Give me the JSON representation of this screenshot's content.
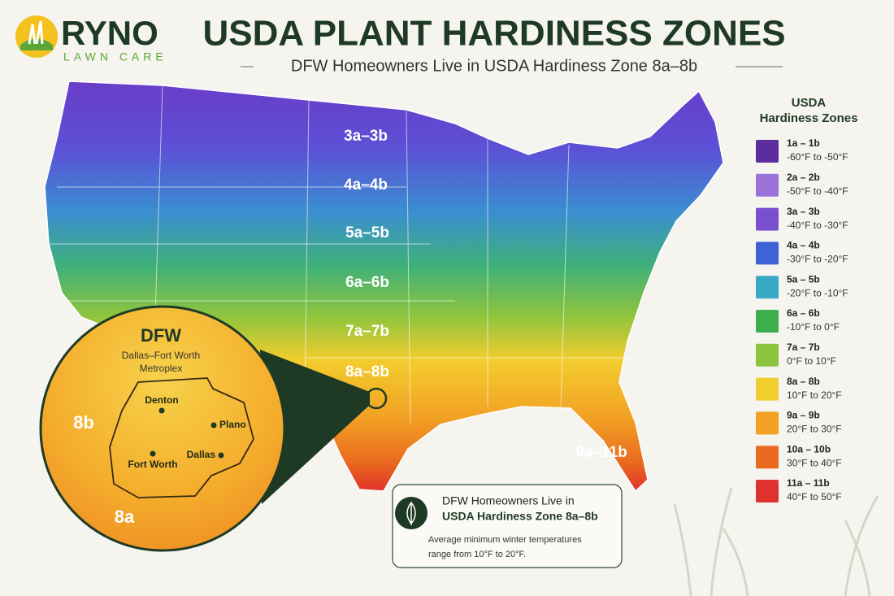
{
  "logo": {
    "name": "RYNO",
    "tagline": "LAWN CARE"
  },
  "header": {
    "title": "USDA PLANT HARDINESS ZONES",
    "subtitle": "DFW Homeowners Live in USDA Hardiness Zone 8a–8b"
  },
  "map": {
    "zone_labels": [
      "3a–3b",
      "4a–4b",
      "5a–5b",
      "6a–6b",
      "7a–7b",
      "8a–8b",
      "9a–11b"
    ]
  },
  "inset": {
    "title": "DFW",
    "subtitle_lines": [
      "Dallas–Fort Worth",
      "Metroplex"
    ],
    "cities": [
      "Denton",
      "Plano",
      "Fort Worth",
      "Dallas"
    ],
    "zones": [
      "8b",
      "8a"
    ]
  },
  "legend": {
    "title_lines": [
      "USDA",
      "Hardiness Zones"
    ],
    "items": [
      {
        "zone": "1a – 1b",
        "range": "-60°F to -50°F",
        "color": "#5b2d9e"
      },
      {
        "zone": "2a – 2b",
        "range": "-50°F to -40°F",
        "color": "#9b72d8"
      },
      {
        "zone": "3a – 3b",
        "range": "-40°F to -30°F",
        "color": "#7a4fd0"
      },
      {
        "zone": "4a – 4b",
        "range": "-30°F to -20°F",
        "color": "#3f63d4"
      },
      {
        "zone": "5a – 5b",
        "range": "-20°F to -10°F",
        "color": "#37a9c4"
      },
      {
        "zone": "6a – 6b",
        "range": "-10°F to 0°F",
        "color": "#3fae4f"
      },
      {
        "zone": "7a – 7b",
        "range": "0°F to 10°F",
        "color": "#8cc43e"
      },
      {
        "zone": "8a – 8b",
        "range": "10°F to 20°F",
        "color": "#f2cd2e"
      },
      {
        "zone": "9a – 9b",
        "range": "20°F to 30°F",
        "color": "#f2a124"
      },
      {
        "zone": "10a – 10b",
        "range": "30°F to 40°F",
        "color": "#ea6a1f"
      },
      {
        "zone": "11a – 11b",
        "range": "40°F to 50°F",
        "color": "#e0322c"
      }
    ]
  },
  "callout": {
    "line1": "DFW Homeowners Live in",
    "line2": "USDA Hardiness Zone 8a–8b",
    "note_lines": [
      "Average minimum winter temperatures",
      "range from 10°F to 20°F."
    ]
  }
}
